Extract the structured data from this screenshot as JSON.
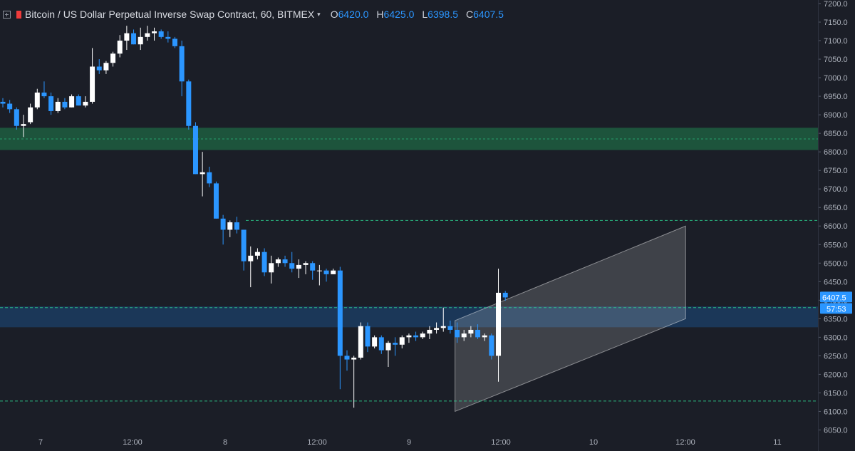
{
  "header": {
    "symbol_title": "Bitcoin / US Dollar Perpetual Inverse Swap Contract, 60, BITMEX",
    "ohlc": [
      {
        "key": "O",
        "value": "6420.0"
      },
      {
        "key": "H",
        "value": "6425.0"
      },
      {
        "key": "L",
        "value": "6398.5"
      },
      {
        "key": "C",
        "value": "6407.5"
      }
    ]
  },
  "colors": {
    "background": "#1b1e27",
    "bull": "#ffffff",
    "bear": "#2b96ff",
    "green_zone": "#1e5a3f",
    "blue_zone": "#1c3a5e",
    "channel": "#ffffff",
    "dashed_line": "#2bd18e",
    "price_label": "#2b96ff"
  },
  "chart_data": {
    "type": "candlestick",
    "y_axis": {
      "ticks": [
        "7200.0",
        "7150.0",
        "7100.0",
        "7050.0",
        "7000.0",
        "6950.0",
        "6900.0",
        "6850.0",
        "6800.0",
        "6750.0",
        "6700.0",
        "6650.0",
        "6600.0",
        "6550.0",
        "6500.0",
        "6450.0",
        "6400.0",
        "6350.0",
        "6300.0",
        "6250.0",
        "6200.0",
        "6150.0",
        "6100.0",
        "6050.0"
      ],
      "range": [
        6040,
        7210
      ]
    },
    "x_axis": {
      "labels": [
        "7",
        "12:00",
        "8",
        "12:00",
        "9",
        "12:00",
        "10",
        "12:00",
        "11"
      ]
    },
    "candles_ohlc": [
      [
        6935,
        6945,
        6920,
        6930
      ],
      [
        6930,
        6940,
        6905,
        6915
      ],
      [
        6915,
        6920,
        6860,
        6870
      ],
      [
        6870,
        6900,
        6840,
        6875
      ],
      [
        6880,
        6930,
        6875,
        6920
      ],
      [
        6920,
        6970,
        6915,
        6960
      ],
      [
        6960,
        6990,
        6945,
        6950
      ],
      [
        6950,
        6960,
        6900,
        6910
      ],
      [
        6910,
        6945,
        6905,
        6935
      ],
      [
        6935,
        6945,
        6915,
        6920
      ],
      [
        6920,
        6955,
        6920,
        6950
      ],
      [
        6950,
        6955,
        6925,
        6925
      ],
      [
        6925,
        6950,
        6920,
        6935
      ],
      [
        6935,
        7080,
        6930,
        7030
      ],
      [
        7030,
        7050,
        7010,
        7020
      ],
      [
        7020,
        7045,
        7010,
        7040
      ],
      [
        7040,
        7070,
        7030,
        7065
      ],
      [
        7065,
        7115,
        7055,
        7100
      ],
      [
        7100,
        7140,
        7075,
        7120
      ],
      [
        7120,
        7130,
        7090,
        7090
      ],
      [
        7090,
        7135,
        7075,
        7110
      ],
      [
        7110,
        7140,
        7100,
        7120
      ],
      [
        7120,
        7135,
        7100,
        7125
      ],
      [
        7125,
        7130,
        7105,
        7110
      ],
      [
        7110,
        7125,
        7095,
        7105
      ],
      [
        7105,
        7110,
        7080,
        7085
      ],
      [
        7085,
        7100,
        6950,
        6990
      ],
      [
        6990,
        6995,
        6860,
        6870
      ],
      [
        6870,
        6880,
        6740,
        6740
      ],
      [
        6740,
        6800,
        6680,
        6745
      ],
      [
        6745,
        6760,
        6705,
        6715
      ],
      [
        6715,
        6720,
        6620,
        6620
      ],
      [
        6620,
        6630,
        6550,
        6590
      ],
      [
        6590,
        6615,
        6570,
        6610
      ],
      [
        6610,
        6625,
        6580,
        6590
      ],
      [
        6590,
        6590,
        6480,
        6505
      ],
      [
        6505,
        6545,
        6435,
        6520
      ],
      [
        6520,
        6540,
        6510,
        6530
      ],
      [
        6530,
        6540,
        6465,
        6475
      ],
      [
        6475,
        6520,
        6445,
        6500
      ],
      [
        6500,
        6515,
        6490,
        6510
      ],
      [
        6510,
        6520,
        6490,
        6500
      ],
      [
        6500,
        6530,
        6475,
        6485
      ],
      [
        6485,
        6510,
        6460,
        6495
      ],
      [
        6495,
        6505,
        6470,
        6500
      ],
      [
        6500,
        6505,
        6455,
        6480
      ],
      [
        6480,
        6495,
        6440,
        6480
      ],
      [
        6480,
        6485,
        6450,
        6470
      ],
      [
        6470,
        6485,
        6470,
        6480
      ],
      [
        6480,
        6490,
        6160,
        6250
      ],
      [
        6250,
        6265,
        6210,
        6240
      ],
      [
        6240,
        6250,
        6110,
        6245
      ],
      [
        6245,
        6340,
        6240,
        6330
      ],
      [
        6330,
        6340,
        6260,
        6275
      ],
      [
        6275,
        6305,
        6270,
        6300
      ],
      [
        6300,
        6305,
        6255,
        6265
      ],
      [
        6265,
        6290,
        6220,
        6285
      ],
      [
        6285,
        6300,
        6250,
        6280
      ],
      [
        6280,
        6305,
        6270,
        6300
      ],
      [
        6300,
        6310,
        6285,
        6305
      ],
      [
        6305,
        6315,
        6290,
        6300
      ],
      [
        6300,
        6315,
        6295,
        6310
      ],
      [
        6310,
        6330,
        6295,
        6320
      ],
      [
        6320,
        6340,
        6310,
        6325
      ],
      [
        6325,
        6380,
        6315,
        6330
      ],
      [
        6330,
        6345,
        6310,
        6320
      ],
      [
        6320,
        6340,
        6285,
        6300
      ],
      [
        6300,
        6320,
        6290,
        6310
      ],
      [
        6310,
        6330,
        6300,
        6320
      ],
      [
        6320,
        6335,
        6295,
        6300
      ],
      [
        6300,
        6310,
        6290,
        6305
      ],
      [
        6305,
        6310,
        6240,
        6250
      ],
      [
        6250,
        6485,
        6180,
        6420
      ],
      [
        6420,
        6425,
        6398.5,
        6407.5
      ]
    ],
    "zones": [
      {
        "from": 6805,
        "to": 6865,
        "color": "green_zone",
        "midline": 6835
      },
      {
        "from": 6327,
        "to": 6383,
        "color": "blue_zone"
      }
    ],
    "dashed_levels": [
      6615,
      6380,
      6128
    ],
    "channel": {
      "upper": [
        {
          "x": 9.25,
          "price": 6345
        },
        {
          "x": 10.5,
          "price": 6600
        }
      ],
      "lower": [
        {
          "x": 9.25,
          "price": 6100
        },
        {
          "x": 10.5,
          "price": 6350
        }
      ]
    },
    "price_labels": {
      "last_price": "6407.5",
      "countdown": "57:53"
    }
  }
}
